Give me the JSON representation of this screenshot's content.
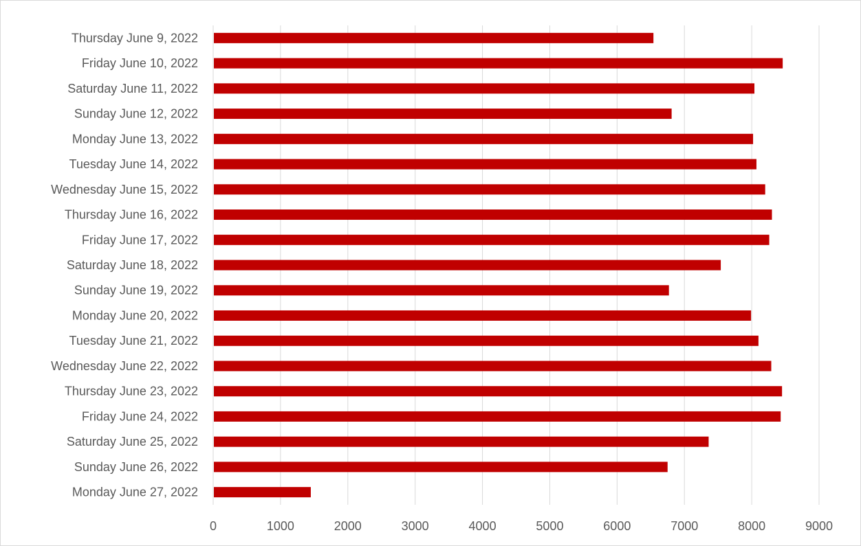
{
  "chart_data": {
    "type": "bar",
    "orientation": "horizontal",
    "title": "",
    "xlabel": "",
    "ylabel": "",
    "categories": [
      "Thursday June 9, 2022",
      "Friday June 10, 2022",
      "Saturday June 11, 2022",
      "Sunday June 12, 2022",
      "Monday June 13, 2022",
      "Tuesday June 14, 2022",
      "Wednesday June 15, 2022",
      "Thursday June 16, 2022",
      "Friday June 17, 2022",
      "Saturday June 18, 2022",
      "Sunday June 19, 2022",
      "Monday June 20, 2022",
      "Tuesday June 21, 2022",
      "Wednesday June 22, 2022",
      "Thursday June 23, 2022",
      "Friday June 24, 2022",
      "Saturday June 25, 2022",
      "Sunday June 26, 2022",
      "Monday June 27, 2022"
    ],
    "values": [
      6540,
      8460,
      8040,
      6810,
      8020,
      8070,
      8200,
      8300,
      8260,
      7540,
      6770,
      7990,
      8100,
      8290,
      8450,
      8430,
      7360,
      6750,
      1450
    ],
    "xlim": [
      0,
      9000
    ],
    "xticks": [
      0,
      1000,
      2000,
      3000,
      4000,
      5000,
      6000,
      7000,
      8000,
      9000
    ],
    "grid": "vertical",
    "legend": "none",
    "bar_color": "#c00000",
    "grid_color": "#d9d9d9",
    "label_color": "#595959"
  }
}
